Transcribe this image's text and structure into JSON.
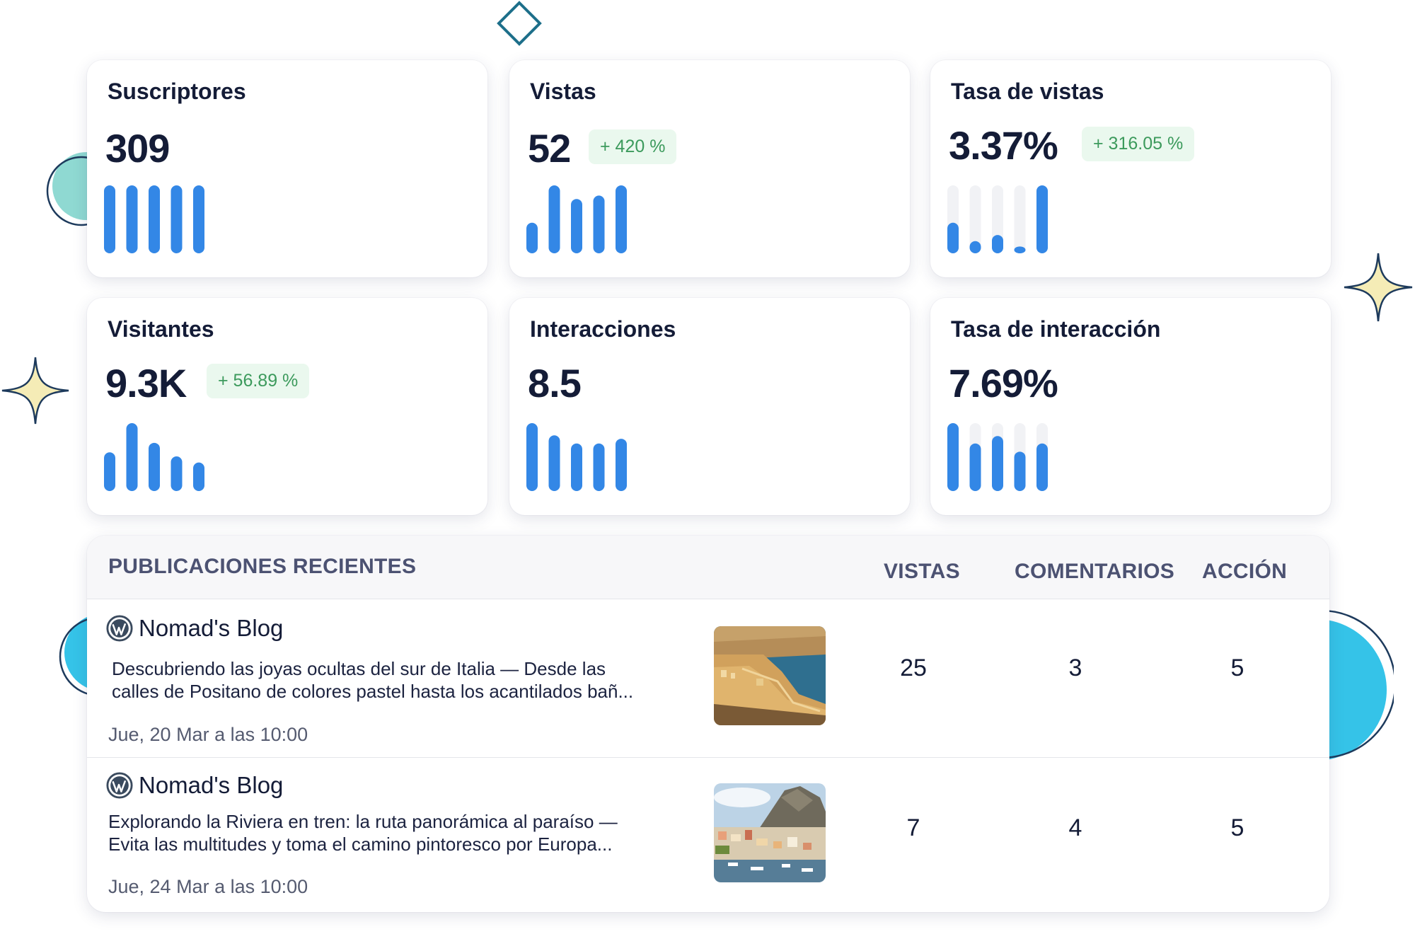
{
  "metrics": [
    {
      "title": "Suscriptores",
      "value": "309",
      "badge": "",
      "bars": [
        1,
        1,
        1,
        1,
        1
      ],
      "tracks": false
    },
    {
      "title": "Vistas",
      "value": "52",
      "badge": "+ 420 %",
      "bars": [
        0.45,
        1,
        0.8,
        0.85,
        1
      ],
      "tracks": false
    },
    {
      "title": "Tasa de vistas",
      "value": "3.37%",
      "badge": "+ 316.05 %",
      "bars": [
        0.45,
        0.18,
        0.27,
        0.08,
        1
      ],
      "tracks": true
    },
    {
      "title": "Visitantes",
      "value": "9.3K",
      "badge": "+ 56.89 %",
      "bars": [
        0.57,
        1,
        0.71,
        0.51,
        0.42
      ],
      "tracks": false
    },
    {
      "title": "Interacciones",
      "value": "8.5",
      "badge": "",
      "bars": [
        1,
        0.82,
        0.7,
        0.7,
        0.77
      ],
      "tracks": false
    },
    {
      "title": "Tasa de interacción",
      "value": "7.69%",
      "badge": "",
      "bars": [
        1,
        0.7,
        0.81,
        0.58,
        0.7
      ],
      "tracks": true
    }
  ],
  "posts": {
    "header": {
      "title": "PUBLICACIONES RECIENTES",
      "views": "VISTAS",
      "comments": "COMENTARIOS",
      "action": "ACCIÓN"
    },
    "rows": [
      {
        "blog": "Nomad's Blog",
        "excerpt_line1": "Descubriendo las joyas ocultas del sur de Italia — Desde las",
        "excerpt_line2": "calles de Positano de colores pastel hasta los acantilados bañ...",
        "date": "Jue, 20 Mar a las 10:00",
        "views": "25",
        "comments": "3",
        "action": "5"
      },
      {
        "blog": "Nomad's Blog",
        "excerpt_line1": "Explorando la Riviera en tren: la ruta panorámica al paraíso —",
        "excerpt_line2": "Evita las multitudes y toma el camino pintoresco por Europa...",
        "date": "Jue, 24 Mar a las 10:00",
        "views": "7",
        "comments": "4",
        "action": "5"
      }
    ]
  },
  "colors": {
    "bar": "#3387e6",
    "track": "#f1f2f5",
    "badge_bg": "#eaf8ee",
    "badge_text": "#3c9a5c",
    "teal_deco": "#8fd9d2",
    "cyan_deco": "#35c3e8",
    "star": "#f5ecb6"
  },
  "icons": {
    "blog_logo": "wordpress-icon",
    "decorations": [
      "diamond-icon",
      "sparkle-icon"
    ]
  }
}
